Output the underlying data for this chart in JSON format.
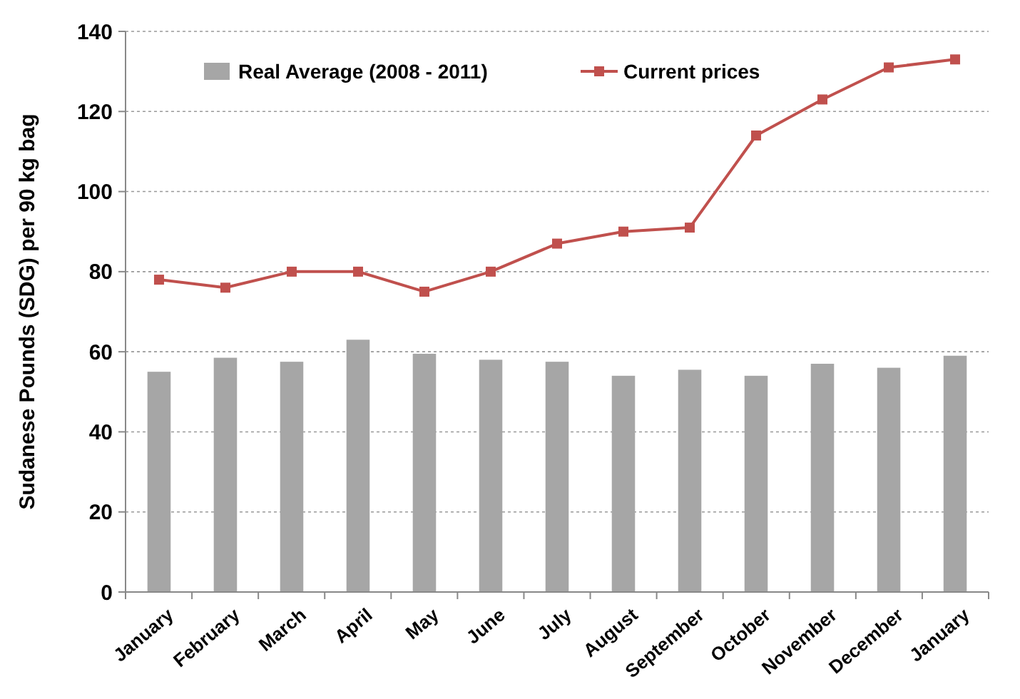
{
  "chart_data": {
    "type": "bar",
    "ylabel": "Sudanese Pounds (SDG) per 90 kg bag",
    "categories": [
      "January",
      "February",
      "March",
      "April",
      "May",
      "June",
      "July",
      "August",
      "September",
      "October",
      "November",
      "December",
      "January"
    ],
    "series": [
      {
        "name": "Real Average (2008 - 2011)",
        "color": "#a6a6a6",
        "values": [
          55,
          58.5,
          57.5,
          63,
          59.5,
          58,
          57.5,
          54,
          55.5,
          54,
          57,
          56,
          59
        ]
      },
      {
        "name": "Current prices",
        "type": "line",
        "color": "#c0504d",
        "marker": "square",
        "values": [
          78,
          76,
          80,
          80,
          75,
          80,
          87,
          90,
          91,
          114,
          123,
          131,
          133
        ]
      }
    ],
    "ylim": [
      0,
      140
    ],
    "yticks": [
      0,
      20,
      40,
      60,
      80,
      100,
      120,
      140
    ],
    "grid": "y",
    "legend": "top"
  }
}
